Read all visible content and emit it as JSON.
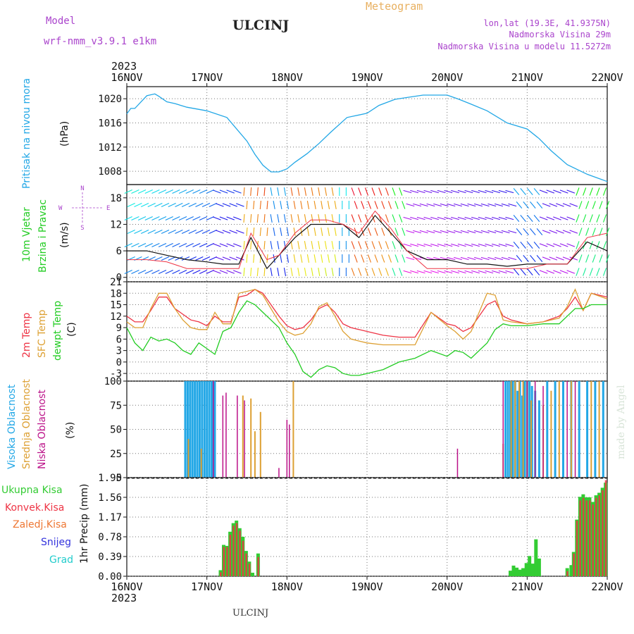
{
  "header": {
    "model_label": "Model",
    "model_name": "wrf-nmm_v3.9.1 e1km",
    "station": "ULCINJ",
    "meteogram": "Meteogram",
    "lonlat": "lon,lat (19.3E, 41.9375N)",
    "altitude": "Nadmorska Visina 29m",
    "model_altitude": "Nadmorska Visina u modelu 11.5272m",
    "footer_station": "ULCINJ",
    "credit": "made by Angel"
  },
  "time_axis": {
    "year": "2023",
    "labels": [
      "16NOV",
      "17NOV",
      "18NOV",
      "19NOV",
      "20NOV",
      "21NOV",
      "22NOV"
    ],
    "ndays": 6
  },
  "colors": {
    "pressure": "#22a7e6",
    "temp2m": "#ee3344",
    "sfc": "#dda033",
    "dew": "#22cc22",
    "high_cloud": "#22a7e6",
    "mid_cloud": "#dda033",
    "low_cloud": "#bb1188",
    "total_precip": "#33cc33",
    "convective": "#ee3344",
    "frozen": "#ee7733",
    "snow": "#3333dd",
    "hail": "#22cccc",
    "header_purple": "#aa44cc",
    "header_orange": "#e8b060"
  },
  "panel_labels": {
    "pressure": [
      "Pritisak na nivou mora"
    ],
    "pressure_unit": "(hPa)",
    "wind": [
      "10m Vjetar",
      "Brzina i Pravac"
    ],
    "wind_unit": "(m/s)",
    "compass": [
      "N",
      "W",
      "E",
      "S"
    ],
    "temp": [
      "2m Temp",
      "SFC Temp",
      "dewpt Temp"
    ],
    "temp_unit": "(C)",
    "cloud": [
      "Visoka Oblacnost",
      "Srednja Oblacnost",
      "Niska Oblacnost"
    ],
    "cloud_unit": "(%)",
    "precip_legend": [
      "Ukupna Kisa",
      "Konvek.Kisa",
      "Zaledj.Kisa",
      "Snijeg",
      "Grad"
    ],
    "precip_unit": "1hr Precip (mm)"
  },
  "chart_data": [
    {
      "type": "line",
      "name": "pressure",
      "ylabel": "(hPa)",
      "yticks": [
        1008,
        1012,
        1016,
        1020
      ],
      "ylim": [
        1005.8,
        1022
      ],
      "series": [
        {
          "name": "Pritisak na nivou mora",
          "x": [
            0,
            0.05,
            0.1,
            0.2,
            0.25,
            0.35,
            0.4,
            0.5,
            0.6,
            0.75,
            1.0,
            1.25,
            1.5,
            1.6,
            1.7,
            1.8,
            1.9,
            2.0,
            2.1,
            2.25,
            2.4,
            2.55,
            2.75,
            3.0,
            3.15,
            3.35,
            3.5,
            3.7,
            3.85,
            4.0,
            4.15,
            4.3,
            4.5,
            4.75,
            5.0,
            5.15,
            5.3,
            5.5,
            5.75,
            6.0
          ],
          "y": [
            1017.5,
            1018.4,
            1018.4,
            1019.8,
            1020.5,
            1020.8,
            1020.4,
            1019.5,
            1019.2,
            1018.6,
            1018.0,
            1016.9,
            1013.0,
            1010.8,
            1009.0,
            1007.9,
            1007.9,
            1008.4,
            1009.5,
            1010.9,
            1012.6,
            1014.5,
            1016.9,
            1017.6,
            1018.9,
            1019.9,
            1020.2,
            1020.6,
            1020.6,
            1020.6,
            1019.9,
            1019.1,
            1018.0,
            1016.0,
            1015.0,
            1013.4,
            1011.4,
            1009.1,
            1007.5,
            1006.3
          ]
        }
      ]
    },
    {
      "type": "line",
      "name": "wind",
      "ylabel": "(m/s)",
      "yticks": [
        0,
        6,
        12,
        18
      ],
      "ylim": [
        -1,
        21
      ],
      "note_barbs": "wind direction arrows colored by speed",
      "series": [
        {
          "name": "wind speed",
          "x": [
            0,
            0.25,
            0.5,
            0.75,
            1.0,
            1.2,
            1.4,
            1.55,
            1.75,
            1.9,
            2.1,
            2.3,
            2.5,
            2.7,
            2.9,
            3.1,
            3.3,
            3.5,
            3.75,
            4.0,
            4.25,
            4.5,
            4.75,
            5.0,
            5.25,
            5.5,
            5.75,
            6.0
          ],
          "y": [
            6,
            6,
            5,
            4,
            3.5,
            3,
            3,
            9,
            2,
            5,
            9,
            12,
            12,
            12,
            9,
            14,
            10,
            6,
            4,
            4,
            3,
            3,
            2.5,
            3,
            3,
            3,
            8,
            6
          ]
        },
        {
          "name": "gust",
          "x": [
            0,
            0.25,
            0.5,
            0.75,
            1.0,
            1.2,
            1.4,
            1.55,
            1.75,
            1.9,
            2.1,
            2.3,
            2.5,
            2.7,
            2.9,
            3.1,
            3.3,
            3.5,
            3.75,
            4.0,
            4.25,
            4.5,
            4.75,
            5.0,
            5.25,
            5.5,
            5.75,
            6.0
          ],
          "y": [
            4,
            4,
            3.5,
            2,
            2,
            2,
            2,
            10,
            4,
            5,
            10,
            13,
            13,
            12,
            10,
            15,
            11,
            6,
            2,
            2,
            2,
            2,
            2,
            2,
            3,
            3,
            9,
            10
          ]
        }
      ]
    },
    {
      "type": "line",
      "name": "temperature",
      "ylabel": "(C)",
      "yticks": [
        -3,
        0,
        3,
        6,
        9,
        12,
        15,
        18,
        21
      ],
      "ylim": [
        -5,
        21
      ],
      "series": [
        {
          "name": "2m Temp",
          "x": [
            0,
            0.1,
            0.2,
            0.3,
            0.4,
            0.5,
            0.6,
            0.7,
            0.8,
            0.9,
            1.0,
            1.1,
            1.2,
            1.3,
            1.4,
            1.5,
            1.6,
            1.7,
            1.8,
            1.9,
            2.0,
            2.1,
            2.2,
            2.3,
            2.4,
            2.5,
            2.6,
            2.7,
            2.8,
            2.9,
            3.0,
            3.2,
            3.4,
            3.6,
            3.8,
            4.0,
            4.1,
            4.2,
            4.3,
            4.5,
            4.6,
            4.7,
            4.8,
            5.0,
            5.2,
            5.4,
            5.5,
            5.6,
            5.7,
            5.8,
            6.0
          ],
          "y": [
            12,
            10.5,
            10.5,
            13.5,
            17,
            17,
            14,
            12.5,
            11,
            10.5,
            9.5,
            12,
            10.5,
            10.5,
            17,
            17.5,
            19,
            18,
            15,
            12,
            9.5,
            8.5,
            9,
            11,
            14,
            15,
            13,
            10,
            9,
            8.5,
            8,
            7,
            6.5,
            6.5,
            13,
            10,
            9.5,
            8,
            9,
            15,
            16,
            12,
            11,
            10,
            10.5,
            12,
            14,
            17,
            13.5,
            18,
            17
          ]
        },
        {
          "name": "SFC Temp",
          "x": [
            0,
            0.1,
            0.2,
            0.3,
            0.4,
            0.5,
            0.6,
            0.7,
            0.8,
            0.9,
            1.0,
            1.1,
            1.2,
            1.3,
            1.4,
            1.5,
            1.6,
            1.7,
            1.8,
            1.9,
            2.0,
            2.1,
            2.2,
            2.3,
            2.4,
            2.5,
            2.6,
            2.7,
            2.8,
            2.9,
            3.0,
            3.2,
            3.4,
            3.6,
            3.8,
            4.0,
            4.1,
            4.2,
            4.3,
            4.5,
            4.6,
            4.7,
            4.8,
            5.0,
            5.2,
            5.4,
            5.5,
            5.6,
            5.7,
            5.8,
            6.0
          ],
          "y": [
            10.5,
            9,
            9,
            14,
            18,
            18,
            14,
            11,
            9,
            8.5,
            8.5,
            13,
            10,
            10,
            18,
            18.5,
            19,
            17.5,
            14,
            10.5,
            8,
            7,
            7.5,
            10,
            14.5,
            15.5,
            12,
            8,
            6,
            5.5,
            5,
            4.5,
            4.5,
            4.5,
            13,
            9.5,
            8,
            6,
            8,
            18,
            17.5,
            11,
            10.5,
            10,
            10.5,
            11.5,
            14.5,
            19,
            13.5,
            18,
            16.5
          ]
        },
        {
          "name": "dewpt Temp",
          "x": [
            0,
            0.1,
            0.2,
            0.3,
            0.4,
            0.5,
            0.6,
            0.7,
            0.8,
            0.9,
            1.0,
            1.1,
            1.2,
            1.3,
            1.4,
            1.5,
            1.6,
            1.7,
            1.8,
            1.9,
            2.0,
            2.1,
            2.2,
            2.3,
            2.4,
            2.5,
            2.6,
            2.7,
            2.8,
            2.9,
            3.0,
            3.2,
            3.4,
            3.6,
            3.8,
            4.0,
            4.1,
            4.2,
            4.3,
            4.5,
            4.6,
            4.7,
            4.8,
            5.0,
            5.2,
            5.4,
            5.5,
            5.6,
            5.7,
            5.8,
            6.0
          ],
          "y": [
            9,
            5,
            3,
            6.5,
            5.5,
            6,
            5,
            3,
            2,
            5,
            3.5,
            2,
            8,
            9,
            13,
            16,
            15,
            13,
            11,
            9,
            5,
            2,
            -2.5,
            -4,
            -2,
            -1,
            -1.5,
            -3,
            -3.5,
            -3.5,
            -3,
            -2,
            0,
            1,
            3,
            1.5,
            3,
            2.5,
            1,
            5,
            8.5,
            10,
            9.5,
            9.5,
            10,
            10,
            12,
            14,
            14,
            15,
            15
          ]
        }
      ]
    },
    {
      "type": "bar",
      "name": "cloud_cover",
      "ylabel": "(%)",
      "yticks": [
        0,
        25,
        50,
        75,
        100
      ],
      "ylim": [
        0,
        100
      ],
      "series": [
        {
          "name": "Visoka Oblacnost",
          "x": [
            0.73,
            0.76,
            0.79,
            0.82,
            0.85,
            0.88,
            0.91,
            0.94,
            0.97,
            1.0,
            1.03,
            1.06,
            1.1,
            4.73,
            4.76,
            4.79,
            4.82,
            4.85,
            4.88,
            4.91,
            4.94,
            4.97,
            5.0,
            5.03,
            5.06,
            5.1,
            5.15,
            5.25,
            5.35,
            5.45,
            5.55,
            5.65,
            5.75,
            5.85,
            5.95
          ],
          "values": [
            100,
            100,
            100,
            100,
            100,
            100,
            100,
            100,
            100,
            100,
            100,
            100,
            100,
            100,
            100,
            100,
            100,
            100,
            90,
            100,
            85,
            100,
            100,
            100,
            95,
            90,
            80,
            100,
            100,
            100,
            100,
            100,
            100,
            100,
            100
          ]
        },
        {
          "name": "Srednja Oblacnost",
          "x": [
            0.77,
            0.93,
            1.45,
            1.55,
            1.6,
            1.67,
            2.08,
            4.7,
            4.8,
            4.85,
            4.9,
            4.95,
            5.0,
            5.05,
            5.2,
            5.3,
            5.4,
            5.55,
            5.8,
            5.9
          ],
          "values": [
            40,
            30,
            85,
            82,
            48,
            68,
            100,
            35,
            100,
            100,
            100,
            100,
            100,
            80,
            75,
            90,
            100,
            100,
            100,
            100
          ]
        },
        {
          "name": "Niska Oblacnost",
          "x": [
            1.08,
            1.2,
            1.24,
            1.38,
            1.47,
            1.9,
            2.0,
            2.03,
            4.13,
            4.7,
            5.0,
            5.1,
            5.2,
            5.5,
            5.6
          ],
          "values": [
            100,
            85,
            88,
            85,
            80,
            10,
            60,
            55,
            30,
            100,
            100,
            100,
            95,
            100,
            100
          ]
        }
      ]
    },
    {
      "type": "bar",
      "name": "precipitation",
      "ylabel": "1hr Precip (mm)",
      "yticks": [
        0,
        0.39,
        0.78,
        1.17,
        1.56,
        1.95
      ],
      "ylim": [
        0,
        1.95
      ],
      "series": [
        {
          "name": "Ukupna Kisa",
          "x": [
            1.17,
            1.21,
            1.25,
            1.29,
            1.33,
            1.37,
            1.41,
            1.45,
            1.49,
            1.53,
            1.57,
            1.64,
            4.79,
            4.83,
            4.87,
            4.91,
            4.95,
            4.99,
            5.03,
            5.07,
            5.11,
            5.15,
            5.5,
            5.55,
            5.58,
            5.62,
            5.66,
            5.7,
            5.74,
            5.78,
            5.82,
            5.86,
            5.9,
            5.94,
            5.98
          ],
          "values": [
            0.12,
            0.62,
            0.6,
            0.88,
            1.05,
            1.1,
            0.95,
            0.78,
            0.5,
            0.29,
            0.07,
            0.45,
            0.11,
            0.21,
            0.17,
            0.13,
            0.16,
            0.26,
            0.4,
            0.25,
            0.73,
            0.35,
            0.16,
            0.22,
            0.48,
            1.12,
            1.57,
            1.62,
            1.56,
            1.56,
            1.47,
            1.6,
            1.65,
            1.75,
            1.85
          ]
        },
        {
          "name": "Konvek.Kisa",
          "x": [
            1.17,
            1.21,
            1.25,
            1.29,
            1.33,
            1.37,
            1.41,
            1.45,
            1.49,
            1.53,
            1.64,
            5.5,
            5.58,
            5.62,
            5.66,
            5.7,
            5.74,
            5.78,
            5.82,
            5.86,
            5.9,
            5.94,
            5.98
          ],
          "values": [
            0.08,
            0.58,
            0.58,
            0.82,
            1.0,
            1.05,
            0.9,
            0.7,
            0.45,
            0.25,
            0.38,
            0.1,
            0.45,
            1.1,
            1.5,
            1.55,
            1.5,
            1.5,
            1.42,
            1.55,
            1.6,
            1.7,
            1.9
          ]
        }
      ]
    }
  ]
}
